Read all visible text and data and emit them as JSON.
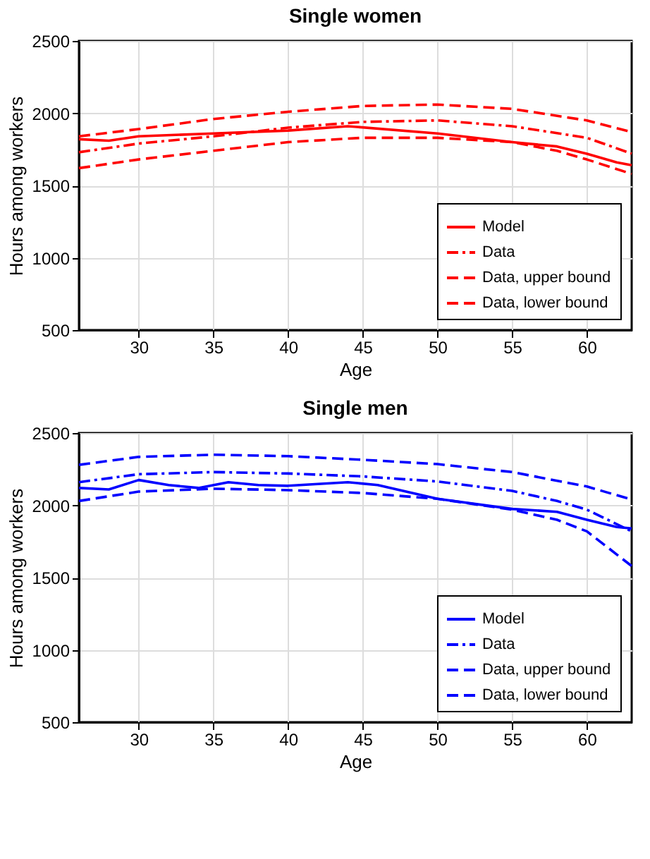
{
  "chart_data": [
    {
      "type": "line",
      "title": "Single women",
      "xlabel": "Age",
      "ylabel": "Hours among workers",
      "xlim": [
        26,
        63
      ],
      "xticks": [
        30,
        35,
        40,
        45,
        50,
        55,
        60
      ],
      "ylim": [
        500,
        2500
      ],
      "yticks": [
        500,
        1000,
        1500,
        2000,
        2500
      ],
      "grid": true,
      "legend": "bottom right",
      "series": [
        {
          "name": "Model",
          "color": "#ff0000",
          "line_style": "solid",
          "x": [
            26,
            28,
            30,
            35,
            40,
            44,
            50,
            55,
            58,
            60,
            62,
            63
          ],
          "values": [
            1820,
            1810,
            1840,
            1860,
            1880,
            1910,
            1860,
            1800,
            1770,
            1720,
            1660,
            1640
          ]
        },
        {
          "name": "Data",
          "color": "#ff0000",
          "line_style": "dashdot",
          "x": [
            26,
            30,
            35,
            40,
            45,
            50,
            55,
            60,
            63
          ],
          "values": [
            1730,
            1790,
            1840,
            1900,
            1940,
            1950,
            1910,
            1830,
            1720
          ]
        },
        {
          "name": "Data, upper bound",
          "color": "#ff0000",
          "line_style": "dashed",
          "x": [
            26,
            30,
            35,
            40,
            45,
            50,
            55,
            60,
            63
          ],
          "values": [
            1840,
            1890,
            1960,
            2010,
            2050,
            2060,
            2030,
            1950,
            1870
          ]
        },
        {
          "name": "Data, lower bound",
          "color": "#ff0000",
          "line_style": "dashed",
          "x": [
            26,
            30,
            35,
            40,
            45,
            50,
            55,
            58,
            60,
            63
          ],
          "values": [
            1620,
            1680,
            1740,
            1800,
            1830,
            1830,
            1800,
            1740,
            1680,
            1580
          ]
        }
      ]
    },
    {
      "type": "line",
      "title": "Single men",
      "xlabel": "Age",
      "ylabel": "Hours among workers",
      "xlim": [
        26,
        63
      ],
      "xticks": [
        30,
        35,
        40,
        45,
        50,
        55,
        60
      ],
      "ylim": [
        500,
        2500
      ],
      "yticks": [
        500,
        1000,
        1500,
        2000,
        2500
      ],
      "grid": true,
      "legend": "bottom right",
      "series": [
        {
          "name": "Model",
          "color": "#0000ff",
          "line_style": "solid",
          "x": [
            26,
            28,
            30,
            32,
            34,
            36,
            38,
            40,
            44,
            46,
            50,
            55,
            58,
            60,
            62,
            63
          ],
          "values": [
            2120,
            2110,
            2175,
            2140,
            2120,
            2160,
            2140,
            2135,
            2160,
            2140,
            2045,
            1975,
            1955,
            1900,
            1850,
            1840
          ]
        },
        {
          "name": "Data",
          "color": "#0000ff",
          "line_style": "dashdot",
          "x": [
            26,
            30,
            35,
            40,
            45,
            50,
            55,
            58,
            60,
            63
          ],
          "values": [
            2160,
            2215,
            2230,
            2220,
            2200,
            2165,
            2100,
            2030,
            1970,
            1820
          ]
        },
        {
          "name": "Data, upper bound",
          "color": "#0000ff",
          "line_style": "dashed",
          "x": [
            26,
            30,
            35,
            40,
            45,
            50,
            55,
            60,
            63
          ],
          "values": [
            2280,
            2335,
            2350,
            2340,
            2315,
            2285,
            2230,
            2130,
            2040
          ]
        },
        {
          "name": "Data, lower bound",
          "color": "#0000ff",
          "line_style": "dashed",
          "x": [
            26,
            30,
            35,
            40,
            45,
            50,
            55,
            58,
            60,
            63
          ],
          "values": [
            2030,
            2095,
            2115,
            2105,
            2085,
            2045,
            1970,
            1900,
            1820,
            1580
          ]
        }
      ]
    }
  ]
}
